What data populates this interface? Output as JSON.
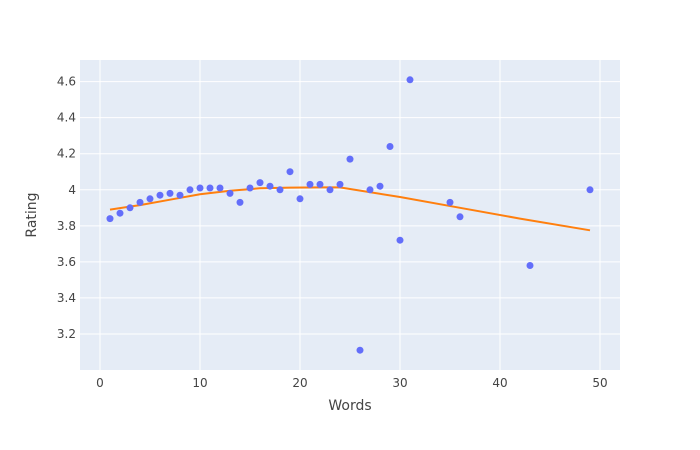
{
  "chart_data": {
    "type": "scatter",
    "xlabel": "Words",
    "ylabel": "Rating",
    "xlim": [
      -2,
      52
    ],
    "ylim": [
      3.0,
      4.72
    ],
    "x_ticks": [
      0,
      10,
      20,
      30,
      40,
      50
    ],
    "x_tick_labels": [
      "0",
      "10",
      "20",
      "30",
      "40",
      "50"
    ],
    "y_ticks": [
      3.2,
      3.4,
      3.6,
      3.8,
      4.0,
      4.2,
      4.4,
      4.6
    ],
    "y_tick_labels": [
      "3.2",
      "3.4",
      "3.6",
      "3.8",
      "4",
      "4.2",
      "4.4",
      "4.6"
    ],
    "grid": true,
    "legend": "none",
    "colors": {
      "plot_background": "#E5ECF6",
      "grid": "#FFFFFF",
      "points": "#636EFA",
      "trend": "#FF7F0E"
    },
    "series": [
      {
        "mode": "markers",
        "x": [
          1,
          2,
          3,
          4,
          5,
          6,
          7,
          8,
          9,
          10,
          11,
          12,
          13,
          14,
          15,
          16,
          17,
          18,
          19,
          20,
          21,
          22,
          23,
          24,
          25,
          26,
          27,
          28,
          29,
          30,
          31,
          35,
          36,
          43,
          49
        ],
        "y": [
          3.84,
          3.87,
          3.9,
          3.93,
          3.95,
          3.97,
          3.98,
          3.97,
          4.0,
          4.01,
          4.01,
          4.01,
          3.98,
          3.93,
          4.01,
          4.04,
          4.02,
          4.0,
          4.1,
          3.95,
          4.03,
          4.03,
          4.0,
          4.03,
          4.17,
          3.11,
          4.0,
          4.02,
          4.24,
          3.72,
          4.61,
          3.93,
          3.85,
          3.58,
          4.0
        ]
      },
      {
        "mode": "lines",
        "x": [
          1,
          4,
          7,
          10,
          13,
          16,
          19,
          22,
          24,
          30,
          36,
          42,
          49
        ],
        "y": [
          3.89,
          3.915,
          3.945,
          3.975,
          3.995,
          4.008,
          4.012,
          4.013,
          4.013,
          3.96,
          3.9,
          3.84,
          3.775
        ]
      }
    ]
  }
}
